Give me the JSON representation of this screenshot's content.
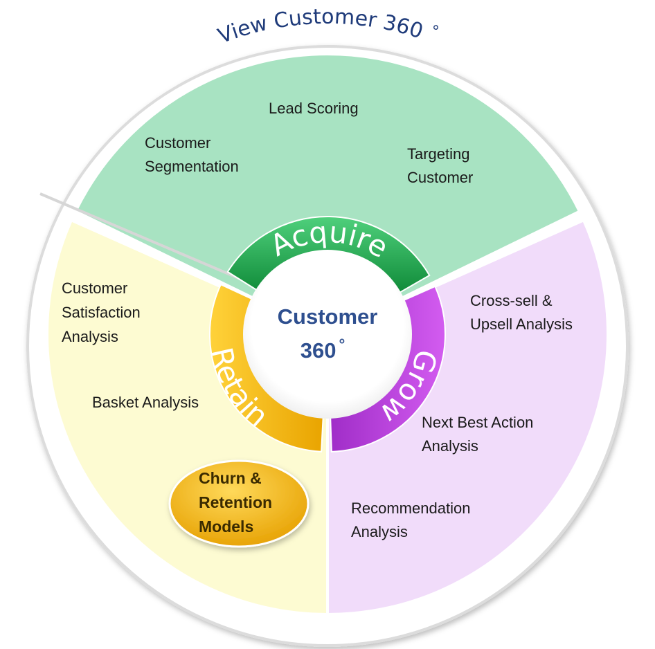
{
  "title": "View Customer 360",
  "title_degree": "°",
  "hub": {
    "line1": "Customer",
    "line2": "360",
    "degree": "°"
  },
  "colors": {
    "acquire_segment": "#a8e3c2",
    "retain_segment": "#fdfbd2",
    "grow_segment": "#f1dcfa",
    "acquire_ring": "#1aa64a",
    "retain_ring": "#f2b400",
    "grow_ring": "#b93ad9",
    "title": "#1f3b7a",
    "hub_text": "#2e4f8f"
  },
  "segments": {
    "acquire": {
      "ring_label": "Acquire",
      "items": [
        {
          "lines": [
            "Lead Scoring"
          ]
        },
        {
          "lines": [
            "Customer",
            "Segmentation"
          ]
        },
        {
          "lines": [
            "Targeting",
            "Customer"
          ]
        }
      ]
    },
    "retain": {
      "ring_label": "Retain",
      "items": [
        {
          "lines": [
            "Customer",
            "Satisfaction",
            "Analysis"
          ]
        },
        {
          "lines": [
            "Basket Analysis"
          ]
        }
      ],
      "highlight": {
        "lines": [
          "Churn &",
          "Retention",
          "Models"
        ]
      }
    },
    "grow": {
      "ring_label": "Grow",
      "items": [
        {
          "lines": [
            "Cross-sell &",
            "Upsell Analysis"
          ]
        },
        {
          "lines": [
            "Next Best Action",
            "Analysis"
          ]
        },
        {
          "lines": [
            "Recommendation",
            "Analysis"
          ]
        }
      ]
    }
  }
}
